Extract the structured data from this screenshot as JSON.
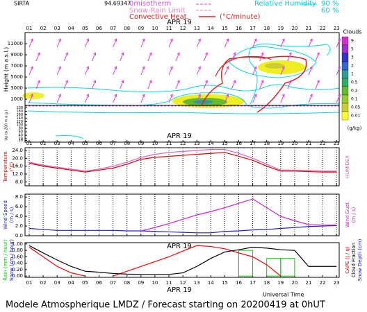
{
  "header": {
    "site": "SIRTA",
    "coords": "94.69347",
    "isotherm": "0misotherm",
    "snow_rain": "Snow-Rain Limit",
    "convective": "Convective Heat.",
    "convective_unit": "(°C/minute)",
    "rh": "Relative Humidity",
    "rh_high": "90 %",
    "rh_low": "60 %"
  },
  "footer": "Modele Atmospherique LMDZ / Forecast starting on 20200419 at 0hUT",
  "x_title": "Universal Time",
  "chart_data": [
    {
      "type": "contour",
      "date_label": "APR 19",
      "categories": [
        "01",
        "02",
        "03",
        "04",
        "05",
        "06",
        "07",
        "08",
        "09",
        "10",
        "11",
        "12",
        "13",
        "14",
        "15",
        "16",
        "17",
        "18",
        "19",
        "20",
        "21",
        "22",
        "23"
      ],
      "y_label": "Height (m a.s.l.)",
      "ylim": [
        0,
        13000
      ],
      "yticks": [
        1000,
        3000,
        5000,
        7000,
        9000,
        11000
      ],
      "lower_y_label": "Up to 200 m a.g.l.",
      "lower_ylim": [
        0,
        210
      ],
      "lower_yticks": [
        10,
        20,
        40,
        60,
        80,
        100,
        120,
        140,
        160,
        180,
        200
      ],
      "colorbar": {
        "title": "Clouds",
        "unit": "(g/kg)",
        "levels": [
          9,
          5,
          3,
          2,
          1,
          0.5,
          0.2,
          0.1,
          0.05,
          0.01
        ],
        "colors": [
          "#cc33cc",
          "#9933cc",
          "#3333cc",
          "#3366cc",
          "#339999",
          "#33aa66",
          "#66bb33",
          "#99cc33",
          "#cccc33",
          "#ffff33"
        ]
      }
    },
    {
      "type": "line",
      "date_label": "APR 19",
      "categories": [
        "01",
        "02",
        "03",
        "04",
        "05",
        "06",
        "07",
        "08",
        "09",
        "10",
        "11",
        "12",
        "13",
        "14",
        "15",
        "16",
        "17",
        "18",
        "19",
        "20",
        "21",
        "22",
        "23"
      ],
      "ylim": [
        6,
        25.4
      ],
      "yticks": [
        {
          "value": 8,
          "label": "8.0"
        },
        {
          "value": 12,
          "label": "12.0"
        },
        {
          "value": 16,
          "label": "16.0"
        },
        {
          "value": 20,
          "label": "20.0"
        },
        {
          "value": 24,
          "label": "24.0"
        }
      ],
      "series": [
        {
          "name": "Temperature",
          "unit": "(°C)",
          "side": "left",
          "color": "#e00000",
          "values": [
            17.5,
            16,
            15,
            14,
            13,
            14,
            15,
            17,
            19.5,
            20.5,
            21,
            21.5,
            22,
            22.5,
            23,
            21,
            19,
            16,
            13.5,
            13.5,
            13.2,
            13,
            13
          ]
        },
        {
          "name": "HUMIDEX",
          "side": "right",
          "color": "#e060c0",
          "values": [
            18,
            16.5,
            15.5,
            14.5,
            13.5,
            14.5,
            16,
            18,
            20.5,
            22,
            23,
            23.5,
            24,
            24.5,
            24.5,
            22.5,
            20,
            17,
            14,
            14,
            13.8,
            13.5,
            13.5
          ]
        }
      ]
    },
    {
      "type": "line",
      "categories": [
        "01",
        "02",
        "03",
        "04",
        "05",
        "06",
        "07",
        "08",
        "09",
        "10",
        "11",
        "12",
        "13",
        "14",
        "15",
        "16",
        "17",
        "18",
        "19",
        "20",
        "21",
        "22",
        "23"
      ],
      "ylim": [
        0,
        8.6
      ],
      "yticks": [
        {
          "value": 0,
          "label": "0.0"
        },
        {
          "value": 2,
          "label": "2.0"
        },
        {
          "value": 4,
          "label": "4.0"
        },
        {
          "value": 6,
          "label": "6.0"
        },
        {
          "value": 8,
          "label": "8.0"
        }
      ],
      "series": [
        {
          "name": "Wind Speed",
          "unit": "(m / s)",
          "side": "left",
          "color": "#2020c0",
          "values": [
            1.5,
            1.3,
            1.1,
            1.1,
            1.1,
            1.1,
            1.1,
            1,
            1,
            0.9,
            0.8,
            0.7,
            0.6,
            0.6,
            0.9,
            1,
            1.2,
            1.3,
            1.5,
            1.7,
            1.9,
            2,
            2.1
          ]
        },
        {
          "name": "Wind Gust",
          "unit": "(m / s)",
          "side": "right",
          "color": "#d020d0",
          "values": [
            null,
            null,
            null,
            null,
            null,
            null,
            null,
            null,
            1,
            1.7,
            2.5,
            3.4,
            4.3,
            5,
            5.8,
            6.7,
            7.6,
            5.8,
            4,
            3.1,
            2.3,
            2.2,
            2.2
          ]
        }
      ]
    },
    {
      "type": "line",
      "date_label": "APR 19",
      "categories": [
        "01",
        "02",
        "03",
        "04",
        "05",
        "06",
        "07",
        "08",
        "09",
        "10",
        "11",
        "12",
        "13",
        "14",
        "15",
        "16",
        "17",
        "18",
        "19",
        "20",
        "21",
        "22",
        "23"
      ],
      "ylim": [
        -0.04,
        1.04
      ],
      "yticks": [
        {
          "value": 0,
          "label": "0.00"
        },
        {
          "value": 0.2,
          "label": "0.20"
        },
        {
          "value": 0.4,
          "label": "0.40"
        },
        {
          "value": 0.6,
          "label": "0.60"
        },
        {
          "value": 0.8,
          "label": "0.80"
        },
        {
          "value": 1,
          "label": "1.00"
        }
      ],
      "series": [
        {
          "name": "Rain (mm / hour)",
          "side": "left",
          "style": "step",
          "color": "#00cc00",
          "values": [
            0,
            0,
            0,
            0,
            0,
            0,
            0,
            0,
            0,
            0,
            0,
            0,
            0,
            0,
            0,
            0.8,
            0,
            0.55,
            0.55,
            0,
            0,
            0,
            0
          ]
        },
        {
          "name": "CAPE (J / g)",
          "side": "right",
          "color": "#ff0000",
          "values": [
            0.9,
            0.6,
            0.3,
            0.1,
            0,
            null,
            0,
            0.15,
            0.3,
            0.45,
            0.6,
            0.78,
            0.95,
            0.92,
            0.85,
            0.72,
            0.6,
            0.35,
            0,
            null,
            null,
            null,
            null
          ]
        },
        {
          "name": "Cloud Fraction",
          "side": "right",
          "color": "#000000",
          "values": [
            0.95,
            0.72,
            0.5,
            0.3,
            0.15,
            0.12,
            0.08,
            0.06,
            0.05,
            0.05,
            0.05,
            0.1,
            0.3,
            0.55,
            0.75,
            0.82,
            0.9,
            0.87,
            0.82,
            0.8,
            0.3,
            0.3,
            0.3
          ]
        }
      ],
      "extra_labels": [
        {
          "text": "Snow (cm / hour)",
          "side": "left",
          "color": "#0000ff"
        },
        {
          "text": "Snow Depth (cm)",
          "side": "right",
          "color": "#0000ff"
        }
      ]
    }
  ]
}
